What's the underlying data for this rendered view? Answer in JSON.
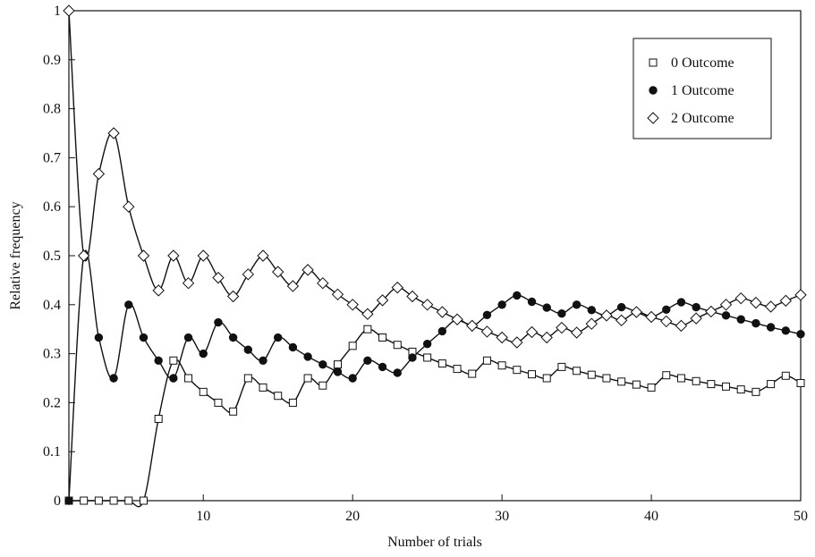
{
  "chart_data": {
    "type": "line",
    "xlabel": "Number of trials",
    "ylabel": "Relative frequency",
    "xlim": [
      1,
      50
    ],
    "ylim": [
      0,
      1
    ],
    "xticks": [
      10,
      20,
      30,
      40,
      50
    ],
    "yticks": [
      0,
      0.1,
      0.2,
      0.3,
      0.4,
      0.5,
      0.6,
      0.7,
      0.8,
      0.9,
      1
    ],
    "ytick_labels": [
      "0",
      "0.1",
      "0.2",
      "0.3",
      "0.4",
      "0.5",
      "0.6",
      "0.7",
      "0.8",
      "0.9",
      "1"
    ],
    "grid": false,
    "legend_position": "top-right",
    "x": [
      1,
      2,
      3,
      4,
      5,
      6,
      7,
      8,
      9,
      10,
      11,
      12,
      13,
      14,
      15,
      16,
      17,
      18,
      19,
      20,
      21,
      22,
      23,
      24,
      25,
      26,
      27,
      28,
      29,
      30,
      31,
      32,
      33,
      34,
      35,
      36,
      37,
      38,
      39,
      40,
      41,
      42,
      43,
      44,
      45,
      46,
      47,
      48,
      49,
      50
    ],
    "series": [
      {
        "name": "0 Outcome",
        "marker": "square-open",
        "values": [
          0,
          0,
          0,
          0,
          0,
          0,
          0.167,
          0.286,
          0.25,
          0.222,
          0.2,
          0.182,
          0.25,
          0.231,
          0.214,
          0.2,
          0.25,
          0.235,
          0.278,
          0.316,
          0.35,
          0.333,
          0.318,
          0.304,
          0.292,
          0.28,
          0.269,
          0.259,
          0.286,
          0.276,
          0.267,
          0.258,
          0.25,
          0.273,
          0.265,
          0.257,
          0.25,
          0.243,
          0.237,
          0.231,
          0.256,
          0.25,
          0.244,
          0.238,
          0.233,
          0.227,
          0.222,
          0.238,
          0.255,
          0.24
        ]
      },
      {
        "name": "1 Outcome",
        "marker": "circle-filled",
        "values": [
          0,
          0.5,
          0.333,
          0.25,
          0.4,
          0.333,
          0.286,
          0.25,
          0.333,
          0.3,
          0.364,
          0.333,
          0.308,
          0.286,
          0.333,
          0.313,
          0.294,
          0.278,
          0.263,
          0.25,
          0.286,
          0.273,
          0.261,
          0.292,
          0.32,
          0.346,
          0.37,
          0.357,
          0.379,
          0.4,
          0.419,
          0.406,
          0.394,
          0.382,
          0.4,
          0.389,
          0.378,
          0.395,
          0.385,
          0.375,
          0.39,
          0.405,
          0.395,
          0.386,
          0.378,
          0.37,
          0.362,
          0.354,
          0.347,
          0.34
        ]
      },
      {
        "name": "2 Outcome",
        "marker": "diamond-open",
        "values": [
          1,
          0.5,
          0.667,
          0.75,
          0.6,
          0.5,
          0.429,
          0.5,
          0.444,
          0.5,
          0.455,
          0.417,
          0.462,
          0.5,
          0.467,
          0.438,
          0.471,
          0.444,
          0.421,
          0.4,
          0.381,
          0.409,
          0.435,
          0.417,
          0.4,
          0.385,
          0.37,
          0.357,
          0.345,
          0.333,
          0.323,
          0.344,
          0.333,
          0.353,
          0.343,
          0.361,
          0.378,
          0.368,
          0.385,
          0.375,
          0.366,
          0.357,
          0.372,
          0.386,
          0.4,
          0.413,
          0.404,
          0.396,
          0.408,
          0.42
        ]
      }
    ]
  }
}
